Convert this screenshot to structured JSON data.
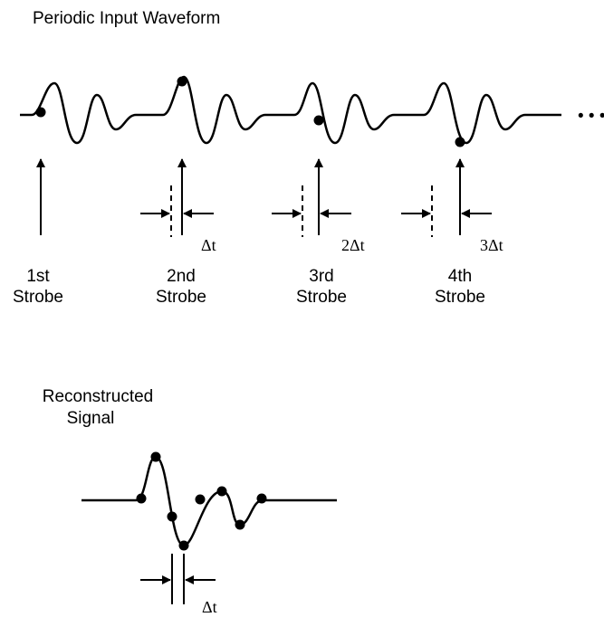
{
  "title": "Periodic Input Waveform",
  "continuation": "• • •",
  "strobes": [
    {
      "line1": "1st",
      "line2": "Strobe"
    },
    {
      "line1": "2nd",
      "line2": "Strobe",
      "delay": "Δt"
    },
    {
      "line1": "3rd",
      "line2": "Strobe",
      "delay": "2Δt"
    },
    {
      "line1": "4th",
      "line2": "Strobe",
      "delay": "3Δt"
    }
  ],
  "reconstructed": {
    "line1": "Reconstructed",
    "line2": "Signal",
    "delay": "Δt"
  }
}
